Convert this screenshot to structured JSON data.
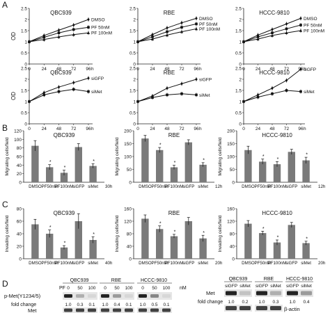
{
  "panel_labels": {
    "A": "A",
    "B": "B",
    "C": "C",
    "D": "D"
  },
  "chart_data": [
    {
      "type": "line",
      "panel": "A",
      "title": "QBC939",
      "ylabel": "OD",
      "x": [
        0,
        24,
        48,
        72,
        96
      ],
      "xunit": "h",
      "ylim": [
        0,
        2.5
      ],
      "yticks": [
        0,
        0.5,
        1,
        1.5,
        2,
        2.5
      ],
      "series": [
        {
          "name": "DMSO",
          "values": [
            1.0,
            1.28,
            1.52,
            1.75,
            2.0
          ]
        },
        {
          "name": "PF 50nM",
          "values": [
            1.0,
            1.2,
            1.4,
            1.55,
            1.65
          ]
        },
        {
          "name": "PF 100nM",
          "values": [
            1.0,
            1.1,
            1.22,
            1.32,
            1.4
          ]
        }
      ]
    },
    {
      "type": "line",
      "panel": "A",
      "title": "RBE",
      "ylabel": "",
      "x": [
        0,
        24,
        48,
        72,
        96
      ],
      "xunit": "h",
      "ylim": [
        0,
        2.5
      ],
      "yticks": [
        0,
        0.5,
        1,
        1.5,
        2,
        2.5
      ],
      "series": [
        {
          "name": "DMSO",
          "values": [
            1.0,
            1.32,
            1.62,
            1.85,
            2.05
          ]
        },
        {
          "name": "PF 50nM",
          "values": [
            1.0,
            1.22,
            1.45,
            1.65,
            1.8
          ]
        },
        {
          "name": "PF 100nM",
          "values": [
            1.0,
            1.12,
            1.3,
            1.45,
            1.58
          ]
        }
      ]
    },
    {
      "type": "line",
      "panel": "A",
      "title": "HCCC-9810",
      "ylabel": "",
      "x": [
        0,
        24,
        48,
        72,
        96
      ],
      "xunit": "h",
      "ylim": [
        0,
        2.5
      ],
      "yticks": [
        0,
        0.5,
        1,
        1.5,
        2,
        2.5
      ],
      "series": [
        {
          "name": "DMSO",
          "values": [
            1.0,
            1.3,
            1.55,
            1.8,
            2.05
          ]
        },
        {
          "name": "PF 50nM",
          "values": [
            1.0,
            1.22,
            1.4,
            1.58,
            1.75
          ]
        },
        {
          "name": "PF 100nM",
          "values": [
            1.0,
            1.12,
            1.28,
            1.4,
            1.5
          ]
        }
      ]
    },
    {
      "type": "line",
      "panel": "A",
      "title": "QBC939",
      "ylabel": "OD",
      "x": [
        0,
        24,
        48,
        72,
        96
      ],
      "xunit": "h",
      "ylim": [
        0,
        2.5
      ],
      "yticks": [
        0,
        0.5,
        1,
        1.5,
        2,
        2.5
      ],
      "series": [
        {
          "name": "siGFP",
          "values": [
            1.0,
            1.4,
            1.65,
            1.85,
            2.05
          ]
        },
        {
          "name": "siMet",
          "values": [
            1.0,
            1.3,
            1.45,
            1.55,
            1.45
          ]
        }
      ]
    },
    {
      "type": "line",
      "panel": "A",
      "title": "RBE",
      "ylabel": "",
      "x": [
        0,
        24,
        48,
        72,
        96
      ],
      "xunit": "h",
      "ylim": [
        0,
        2.5
      ],
      "yticks": [
        0,
        0.5,
        1,
        1.5,
        2,
        2.5
      ],
      "series": [
        {
          "name": "siGFP",
          "values": [
            1.0,
            1.25,
            1.6,
            1.8,
            2.0
          ]
        },
        {
          "name": "siMet",
          "values": [
            1.0,
            1.18,
            1.3,
            1.35,
            1.3
          ]
        }
      ]
    },
    {
      "type": "line",
      "panel": "A",
      "title": "HCCC-9810",
      "ylabel": "",
      "x": [
        0,
        24,
        48,
        72,
        96
      ],
      "xunit": "h",
      "ylim": [
        0,
        2.5
      ],
      "yticks": [
        0,
        0.5,
        1,
        1.5,
        2,
        2.5
      ],
      "series": [
        {
          "name": "siGFP",
          "values": [
            1.0,
            1.3,
            1.6,
            1.95,
            2.45
          ]
        },
        {
          "name": "siMet",
          "values": [
            1.0,
            1.2,
            1.35,
            1.5,
            1.45
          ]
        }
      ]
    },
    {
      "type": "bar",
      "panel": "B",
      "title": "QBC939",
      "ylabel": "Migrating cells/field",
      "categories": [
        "DMSO",
        "PF50nM",
        "PF100nM",
        "siGFP",
        "siMet"
      ],
      "values": [
        85,
        35,
        22,
        82,
        38
      ],
      "errors": [
        12,
        6,
        6,
        8,
        5
      ],
      "star": [
        false,
        true,
        true,
        false,
        true
      ],
      "ylim": [
        0,
        120
      ],
      "yticks": [
        0,
        20,
        40,
        60,
        80,
        100,
        120
      ],
      "time": "30h"
    },
    {
      "type": "bar",
      "panel": "B",
      "title": "RBE",
      "ylabel": "Migrating cells/field",
      "categories": [
        "DMSO",
        "PF50nM",
        "PF100nM",
        "siGFP",
        "siMet"
      ],
      "values": [
        170,
        125,
        58,
        155,
        68
      ],
      "errors": [
        12,
        10,
        8,
        10,
        8
      ],
      "star": [
        false,
        true,
        true,
        false,
        true
      ],
      "ylim": [
        0,
        200
      ],
      "yticks": [
        0,
        50,
        100,
        150,
        200
      ],
      "time": "12h"
    },
    {
      "type": "bar",
      "panel": "B",
      "title": "HCCC-9810",
      "ylabel": "Migrating cells/field",
      "categories": [
        "DMSO",
        "PF50nM",
        "PF100nM",
        "siGFP",
        "siMet"
      ],
      "values": [
        125,
        80,
        70,
        118,
        85
      ],
      "errors": [
        15,
        10,
        10,
        10,
        12
      ],
      "star": [
        false,
        true,
        true,
        false,
        true
      ],
      "ylim": [
        0,
        200
      ],
      "yticks": [
        0,
        50,
        100,
        150,
        200
      ],
      "time": "12h"
    },
    {
      "type": "bar",
      "panel": "C",
      "title": "QBC939",
      "ylabel": "Invading cells/field",
      "categories": [
        "DMSO",
        "PF50nM",
        "PF100nM",
        "siGFP",
        "siMet"
      ],
      "values": [
        55,
        40,
        18,
        60,
        30
      ],
      "errors": [
        8,
        6,
        3,
        12,
        5
      ],
      "star": [
        false,
        true,
        true,
        false,
        true
      ],
      "ylim": [
        0,
        80
      ],
      "yticks": [
        0,
        20,
        40,
        60,
        80
      ],
      "time": "40h"
    },
    {
      "type": "bar",
      "panel": "C",
      "title": "RBE",
      "ylabel": "Invading cells/field",
      "categories": [
        "DMSO",
        "PF50nM",
        "PF100nM",
        "siGFP",
        "siMet"
      ],
      "values": [
        128,
        95,
        72,
        120,
        65
      ],
      "errors": [
        12,
        10,
        6,
        12,
        10
      ],
      "star": [
        false,
        true,
        true,
        false,
        true
      ],
      "ylim": [
        0,
        160
      ],
      "yticks": [
        0,
        40,
        80,
        120,
        160
      ],
      "time": "20h"
    },
    {
      "type": "bar",
      "panel": "C",
      "title": "HCCC-9810",
      "ylabel": "Invading cells/field",
      "categories": [
        "DMSO",
        "PF50nM",
        "PF100nM",
        "siGFP",
        "siMet"
      ],
      "values": [
        112,
        82,
        52,
        108,
        50
      ],
      "errors": [
        10,
        6,
        8,
        8,
        6
      ],
      "star": [
        false,
        true,
        true,
        false,
        true
      ],
      "ylim": [
        0,
        160
      ],
      "yticks": [
        0,
        40,
        80,
        120,
        160
      ],
      "time": "20h"
    }
  ],
  "blot": {
    "left": {
      "pf_label": "PF",
      "unit": "nM",
      "groups": [
        {
          "name": "QBC939",
          "doses": [
            "0",
            "50",
            "100"
          ],
          "fold": [
            "1.0",
            "0.3",
            "0.1"
          ]
        },
        {
          "name": "RBE",
          "doses": [
            "0",
            "50",
            "100"
          ],
          "fold": [
            "1.0",
            "0.4",
            "0.1"
          ]
        },
        {
          "name": "HCCC-9810",
          "doses": [
            "0",
            "50",
            "100"
          ],
          "fold": [
            "1.0",
            "0.5",
            "0.1"
          ]
        }
      ],
      "row1": "p-Met(Y1234/5)",
      "fold_label": "fold change",
      "row2": "Met"
    },
    "right": {
      "groups": [
        {
          "name": "QBC939",
          "lanes": [
            "siGFP",
            "siMet"
          ],
          "fold": [
            "1.0",
            "0.2"
          ]
        },
        {
          "name": "RBE",
          "lanes": [
            "siGFP",
            "siMet"
          ],
          "fold": [
            "1.0",
            "0.3"
          ]
        },
        {
          "name": "HCCC-9810",
          "lanes": [
            "siGFP",
            "siMet"
          ],
          "fold": [
            "1.0",
            "0.4"
          ]
        }
      ],
      "row1": "Met",
      "fold_label": "fold change",
      "row2": "β-actin"
    }
  }
}
